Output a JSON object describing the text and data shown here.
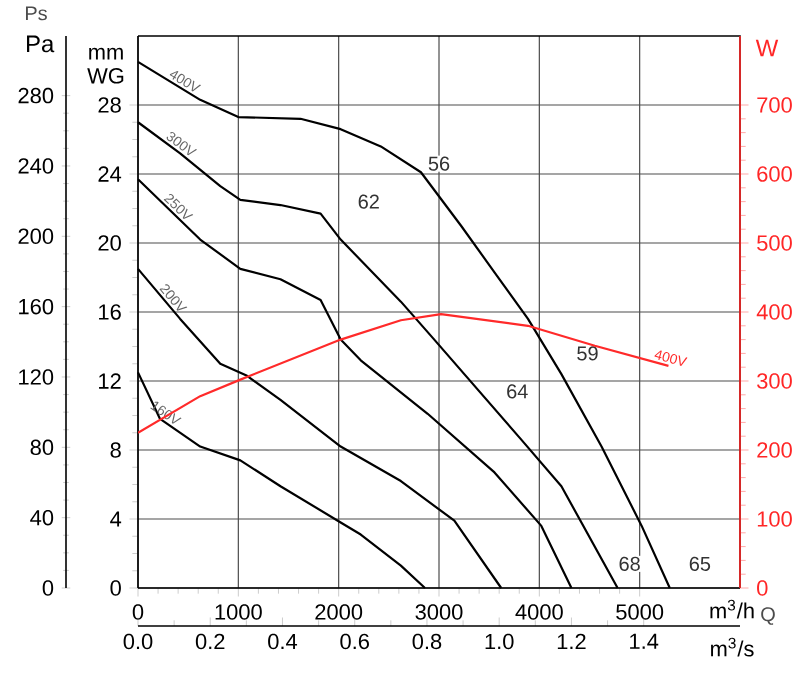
{
  "chart_data": {
    "type": "line",
    "xlabel": "m$^{3}$/h",
    "ylabel": "mm WG",
    "y2label": "W",
    "y3label": "Pa",
    "x2label": "m$^{3}$/s",
    "xlim": [
      0,
      6000
    ],
    "xticks": [
      0,
      1000,
      2000,
      3000,
      4000,
      5000
    ],
    "x2lim": [
      0,
      1.6667
    ],
    "x2ticks": [
      {
        "value": 0,
        "label": "0.0"
      },
      0.2,
      0.4,
      0.6,
      0.8,
      {
        "value": 1,
        "label": "1.0"
      },
      1.2,
      1.4
    ],
    "ylim": [
      0,
      32
    ],
    "yticks": [
      0,
      4,
      8,
      12,
      16,
      20,
      24,
      28
    ],
    "y2lim": [
      0,
      800
    ],
    "y2ticks": [
      0,
      100,
      200,
      300,
      400,
      500,
      600,
      700
    ],
    "y3lim": [
      0,
      313.9
    ],
    "y3ticks": [
      0,
      40,
      80,
      120,
      160,
      200,
      240,
      280
    ],
    "grid": true,
    "series": [
      {
        "name": "400V",
        "color": "#000000",
        "x": [
          0,
          620,
          1000,
          1620,
          2020,
          2420,
          2820,
          3220,
          3553,
          3887,
          4220,
          4620,
          5020,
          5300
        ],
        "values": [
          30.5,
          28.3,
          27.3,
          27.2,
          26.6,
          25.6,
          24.1,
          21.0,
          18.3,
          15.6,
          12.4,
          8.2,
          3.6,
          0
        ]
      },
      {
        "name": "300V",
        "color": "#000000",
        "x": [
          0,
          420,
          820,
          1020,
          1420,
          1820,
          2020,
          2220,
          2620,
          2953,
          3820,
          4220,
          4780
        ],
        "values": [
          27.0,
          25.2,
          23.3,
          22.5,
          22.2,
          21.7,
          20.2,
          19.0,
          16.6,
          14.4,
          8.6,
          5.9,
          0
        ]
      },
      {
        "name": "250V",
        "color": "#000000",
        "x": [
          0,
          620,
          1020,
          1420,
          1820,
          2020,
          2220,
          2887,
          3553,
          4020,
          4320
        ],
        "values": [
          23.7,
          20.2,
          18.5,
          17.9,
          16.7,
          14.4,
          13.2,
          10.1,
          6.7,
          3.6,
          0
        ]
      },
      {
        "name": "200V",
        "color": "#000000",
        "x": [
          0,
          420,
          820,
          1087,
          1420,
          2020,
          2620,
          3153,
          3620
        ],
        "values": [
          18.5,
          15.6,
          13.0,
          12.3,
          10.9,
          8.2,
          6.2,
          3.9,
          0
        ]
      },
      {
        "name": "160V",
        "color": "#000000",
        "x": [
          0,
          220,
          620,
          1020,
          1420,
          2020,
          2220,
          2620,
          2860
        ],
        "values": [
          12.5,
          9.8,
          8.2,
          7.4,
          5.9,
          3.8,
          3.1,
          1.3,
          0
        ]
      },
      {
        "name": "400V",
        "color": "#ff2a2a",
        "axis": "y2",
        "x": [
          0,
          620,
          1020,
          2020,
          2620,
          3020,
          3887,
          4553,
          5287
        ],
        "values": [
          225,
          278,
          302,
          360,
          388,
          397,
          380,
          351,
          322
        ]
      }
    ],
    "annotations": [
      "Ps",
      "Q",
      "56",
      "62",
      "59",
      "64",
      "68",
      "65"
    ]
  }
}
